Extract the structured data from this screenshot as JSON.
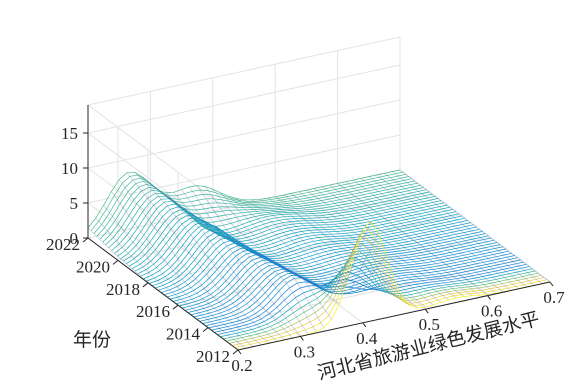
{
  "chart_data": {
    "type": "surface",
    "title": "",
    "xlabel": "河北省旅游业绿色发展水平",
    "ylabel": "年份",
    "zlabel": "",
    "x_ticks": [
      "0.2",
      "0.3",
      "0.4",
      "0.5",
      "0.6",
      "0.7"
    ],
    "y_ticks": [
      "2012",
      "2014",
      "2016",
      "2018",
      "2020",
      "2022"
    ],
    "z_ticks": [
      "0",
      "5",
      "10",
      "15"
    ],
    "xlim": [
      0.2,
      0.7
    ],
    "ylim": [
      2012,
      2022
    ],
    "zlim": [
      0,
      15
    ],
    "grid": true,
    "colormap": "parula",
    "series": [
      {
        "year": 2012,
        "peaks": [
          {
            "center": 0.41,
            "width": 0.028,
            "height": 14.2
          },
          {
            "center": 0.55,
            "width": 0.03,
            "height": 0.6
          }
        ]
      },
      {
        "year": 2014,
        "peaks": [
          {
            "center": 0.34,
            "width": 0.032,
            "height": 4.5
          },
          {
            "center": 0.5,
            "width": 0.04,
            "height": 0.7
          }
        ]
      },
      {
        "year": 2016,
        "peaks": [
          {
            "center": 0.32,
            "width": 0.035,
            "height": 5.0
          },
          {
            "center": 0.5,
            "width": 0.04,
            "height": 0.6
          }
        ]
      },
      {
        "year": 2018,
        "peaks": [
          {
            "center": 0.3,
            "width": 0.035,
            "height": 6.0
          },
          {
            "center": 0.46,
            "width": 0.04,
            "height": 1.0
          }
        ]
      },
      {
        "year": 2020,
        "peaks": [
          {
            "center": 0.28,
            "width": 0.035,
            "height": 6.8
          },
          {
            "center": 0.44,
            "width": 0.05,
            "height": 1.5
          }
        ]
      },
      {
        "year": 2022,
        "peaks": [
          {
            "center": 0.265,
            "width": 0.035,
            "height": 8.0
          },
          {
            "center": 0.37,
            "width": 0.04,
            "height": 4.0
          }
        ]
      }
    ]
  }
}
